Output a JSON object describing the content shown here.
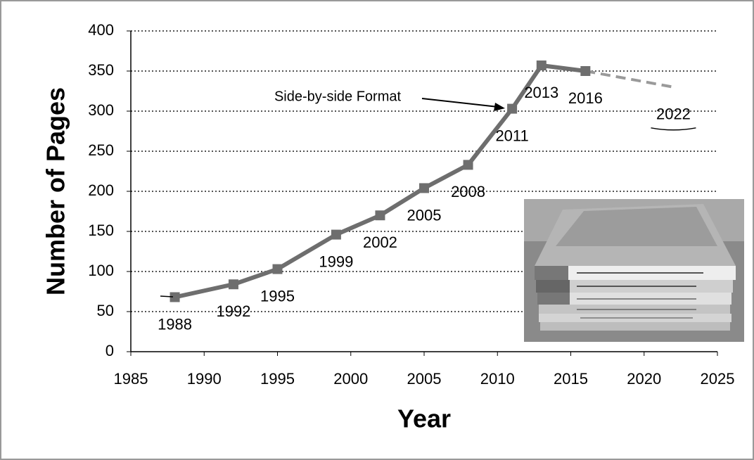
{
  "chart_data": {
    "type": "line",
    "xlabel": "Year",
    "ylabel": "Number of Pages",
    "annotation": "Side-by-side Format",
    "series": [
      {
        "color": "#6e6e6e",
        "dashed": false,
        "marker": true,
        "x": [
          1988,
          1992,
          1995,
          1999,
          2002,
          2005,
          2008,
          2011,
          2013,
          2016
        ],
        "values": [
          68,
          84,
          103,
          146,
          170,
          204,
          233,
          303,
          357,
          350
        ]
      },
      {
        "color": "#9a9a9a",
        "dashed": true,
        "marker": false,
        "x": [
          2016,
          2022
        ],
        "values": [
          350,
          330
        ]
      }
    ],
    "xlim": [
      1985,
      2025
    ],
    "xticks": [
      1985,
      1990,
      1995,
      2000,
      2005,
      2010,
      2015,
      2020,
      2025
    ],
    "ylim": [
      0,
      400
    ],
    "yticks": [
      0,
      50,
      100,
      150,
      200,
      250,
      300,
      350,
      400
    ],
    "grid": true
  }
}
